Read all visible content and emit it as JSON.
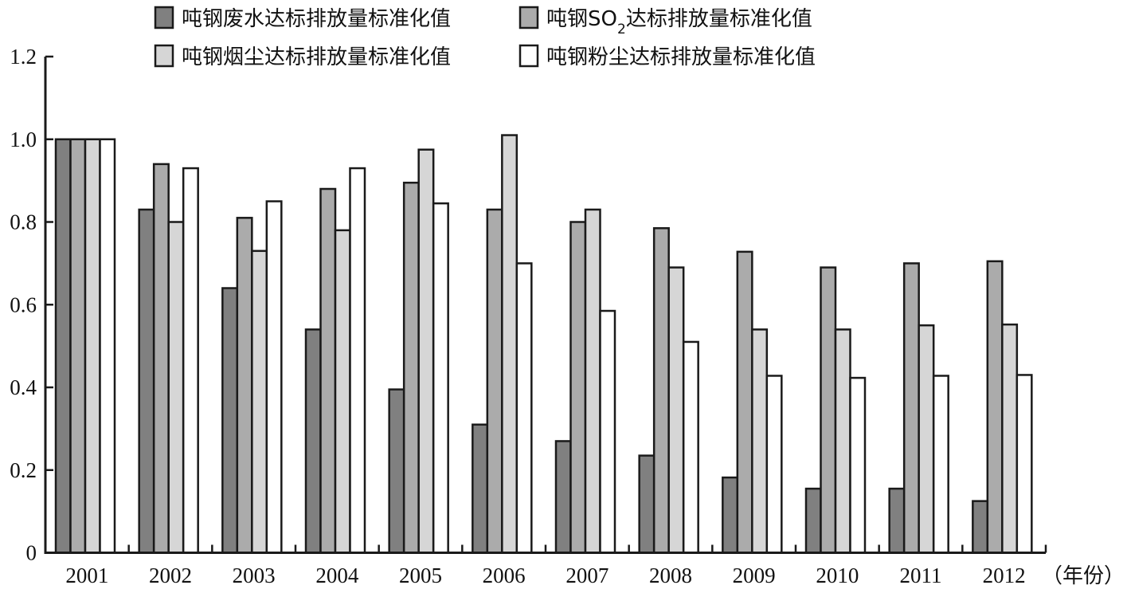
{
  "chart_data": {
    "type": "bar",
    "categories": [
      "2001",
      "2002",
      "2003",
      "2004",
      "2005",
      "2006",
      "2007",
      "2008",
      "2009",
      "2010",
      "2011",
      "2012"
    ],
    "series": [
      {
        "name": "吨钢废水达标排放量标准化值",
        "name_parts": [
          "吨钢废水达标排放量标准化值"
        ],
        "color": "#808080",
        "values": [
          1.0,
          0.83,
          0.64,
          0.54,
          0.395,
          0.31,
          0.27,
          0.235,
          0.182,
          0.155,
          0.155,
          0.125
        ]
      },
      {
        "name": "吨钢SO2达标排放量标准化值",
        "name_parts": [
          "吨钢SO",
          "2",
          "达标排放量标准化值"
        ],
        "color": "#ababab",
        "values": [
          1.0,
          0.94,
          0.81,
          0.88,
          0.895,
          0.83,
          0.8,
          0.785,
          0.728,
          0.69,
          0.7,
          0.705
        ]
      },
      {
        "name": "吨钢烟尘达标排放量标准化值",
        "name_parts": [
          "吨钢烟尘达标排放量标准化值"
        ],
        "color": "#d6d6d6",
        "values": [
          1.0,
          0.8,
          0.73,
          0.78,
          0.975,
          1.01,
          0.83,
          0.69,
          0.54,
          0.54,
          0.55,
          0.552
        ]
      },
      {
        "name": "吨钢粉尘达标排放量标准化值",
        "name_parts": [
          "吨钢粉尘达标排放量标准化值"
        ],
        "color": "#ffffff",
        "values": [
          1.0,
          0.93,
          0.85,
          0.93,
          0.845,
          0.7,
          0.585,
          0.51,
          0.428,
          0.423,
          0.428,
          0.43
        ]
      }
    ],
    "yticks": [
      "0",
      "0.2",
      "0.4",
      "0.6",
      "0.8",
      "1.0",
      "1.2"
    ],
    "ylim": [
      0,
      1.2
    ],
    "xlabel": "（年份）",
    "ylabel": "",
    "grid": false,
    "legend_position": "top"
  }
}
